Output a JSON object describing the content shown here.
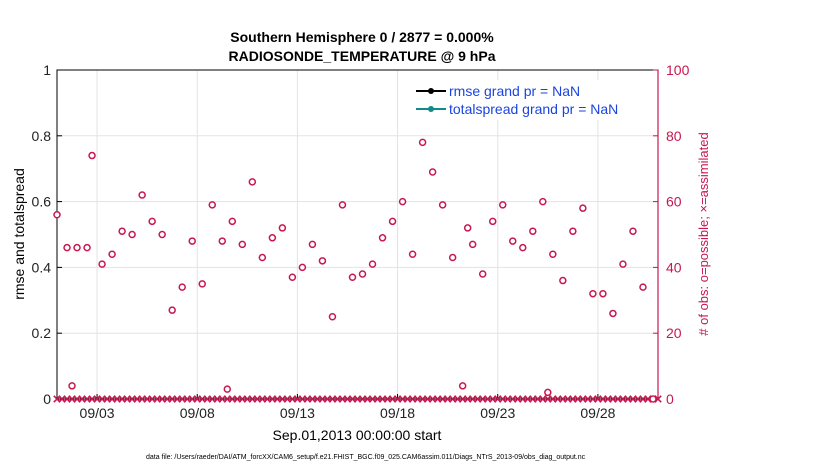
{
  "chart_data": {
    "type": "scatter",
    "title": "Southern Hemisphere 0 / 2877 = 0.000%",
    "subtitle": "RADIOSONDE_TEMPERATURE @ 9 hPa",
    "ylabel": "rmse and totalspread",
    "ylabel_right": "# of obs: o=possible; ×=assimilated",
    "xlabel": "Sep.01,2013 00:00:00 start",
    "footnote": "data file: /Users/raeder/DAI/ATM_forcXX/CAM6_setup/f.e21.FHIST_BGC.f09_025.CAM6assim.011/Diags_NTrS_2013-09/obs_diag_output.nc",
    "ylim": [
      0,
      1
    ],
    "ylim_right": [
      0,
      100
    ],
    "yticks": [
      "0",
      "0.2",
      "0.4",
      "0.6",
      "0.8",
      "1"
    ],
    "yticks_right": [
      "0",
      "20",
      "40",
      "60",
      "80",
      "100"
    ],
    "xlim": [
      1,
      31
    ],
    "xticks": [
      {
        "x": 3,
        "label": "09/03"
      },
      {
        "x": 8,
        "label": "09/08"
      },
      {
        "x": 13,
        "label": "09/13"
      },
      {
        "x": 18,
        "label": "09/18"
      },
      {
        "x": 23,
        "label": "09/23"
      },
      {
        "x": 28,
        "label": "09/28"
      }
    ],
    "grid": true,
    "legend_position": "top-right",
    "series": [
      {
        "name": "rmse grand pr = NaN",
        "color": "#000000",
        "values": []
      },
      {
        "name": "totalspread grand pr = NaN",
        "color": "#138a8a",
        "values": []
      }
    ],
    "obs_possible": {
      "color": "#c8174f",
      "x": [
        1.0,
        1.5,
        1.75,
        2.0,
        2.5,
        2.75,
        3.25,
        3.75,
        4.25,
        4.75,
        5.25,
        5.75,
        6.25,
        6.75,
        7.25,
        7.75,
        8.25,
        8.75,
        9.25,
        9.5,
        9.75,
        10.25,
        10.75,
        11.25,
        11.75,
        12.25,
        12.75,
        13.25,
        13.75,
        14.25,
        14.75,
        15.25,
        15.75,
        16.25,
        16.75,
        17.25,
        17.75,
        18.25,
        18.75,
        19.25,
        19.75,
        20.25,
        20.75,
        21.25,
        21.5,
        21.75,
        22.25,
        22.75,
        23.25,
        23.75,
        24.25,
        24.75,
        25.25,
        25.5,
        25.75,
        26.25,
        26.75,
        27.25,
        27.75,
        28.25,
        28.75,
        29.25,
        29.75,
        30.25,
        30.75
      ],
      "y": [
        56,
        46,
        4,
        46,
        46,
        74,
        41,
        44,
        51,
        50,
        62,
        54,
        50,
        27,
        34,
        48,
        35,
        59,
        48,
        3,
        54,
        47,
        66,
        43,
        49,
        52,
        37,
        40,
        47,
        42,
        25,
        59,
        37,
        38,
        41,
        49,
        54,
        60,
        44,
        78,
        69,
        59,
        43,
        4,
        52,
        47,
        38,
        54,
        59,
        48,
        46,
        51,
        60,
        2,
        44,
        36,
        51,
        58,
        32,
        32,
        26,
        41,
        51,
        34,
        0
      ]
    },
    "obs_assimilated": {
      "color": "#c8174f",
      "value": 0,
      "x_range": [
        1,
        31
      ],
      "step": 0.25
    }
  }
}
